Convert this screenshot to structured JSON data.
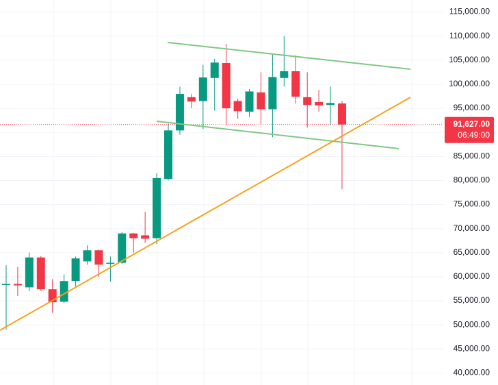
{
  "chart_data": {
    "type": "candlestick",
    "series": [
      {
        "name": null,
        "open": [
          58300,
          58500,
          57800,
          64000,
          57400,
          54800,
          59100,
          63200,
          65500,
          62700,
          62900,
          69000,
          68600,
          68000,
          80300,
          90400,
          97300,
          96500,
          101300,
          104400,
          96500,
          94300,
          98300,
          94800,
          101300,
          102700,
          97300,
          96300,
          95700,
          96000
        ],
        "high": [
          62400,
          62000,
          65000,
          64300,
          59500,
          60500,
          64200,
          66500,
          65600,
          64200,
          69300,
          69100,
          73500,
          81500,
          91800,
          99500,
          98000,
          104000,
          105300,
          108400,
          97000,
          99000,
          102500,
          106200,
          110000,
          106000,
          102500,
          98800,
          99500,
          96500
        ],
        "low": [
          49000,
          56000,
          57000,
          57000,
          52500,
          54500,
          58000,
          62500,
          60000,
          59000,
          62600,
          65000,
          67000,
          66800,
          80000,
          89500,
          95000,
          90700,
          94500,
          91500,
          92800,
          93200,
          91700,
          89000,
          99500,
          96000,
          91000,
          94300,
          91500,
          78200
        ],
        "close": [
          58500,
          58200,
          64000,
          57400,
          54700,
          59100,
          63800,
          65500,
          62500,
          62900,
          69000,
          68000,
          67900,
          80500,
          90400,
          98000,
          96400,
          101400,
          104500,
          95000,
          94400,
          98500,
          94800,
          101500,
          102700,
          97400,
          95700,
          95600,
          96100,
          91627
        ]
      }
    ],
    "up_color": "#089981",
    "down_color": "#f23645",
    "ylim": [
      37500,
      117500
    ],
    "yticks": [
      {
        "value": 40000,
        "label": "40,000.00"
      },
      {
        "value": 45000,
        "label": "45,000.00"
      },
      {
        "value": 50000,
        "label": "50,000.00"
      },
      {
        "value": 55000,
        "label": "55,000.00"
      },
      {
        "value": 60000,
        "label": "60,000.00"
      },
      {
        "value": 65000,
        "label": "65,000.00"
      },
      {
        "value": 70000,
        "label": "70,000.00"
      },
      {
        "value": 75000,
        "label": "75,000.00"
      },
      {
        "value": 80000,
        "label": "80,000.00"
      },
      {
        "value": 85000,
        "label": "85,000.00"
      },
      {
        "value": 90000,
        "label": "90,000.00"
      },
      {
        "value": 95000,
        "label": "95,000.00"
      },
      {
        "value": 100000,
        "label": "100,000.00"
      },
      {
        "value": 105000,
        "label": "105,000.00"
      },
      {
        "value": 110000,
        "label": "110,000.00"
      },
      {
        "value": 115000,
        "label": "115,000.00"
      }
    ],
    "grid": true,
    "last_price": {
      "value": 91627,
      "label": "91,627.00"
    },
    "countdown": "06:49:00"
  }
}
